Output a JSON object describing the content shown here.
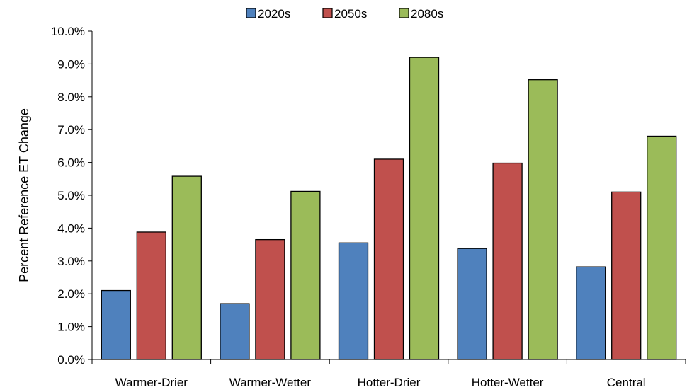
{
  "chart_data": {
    "type": "bar",
    "title": "",
    "xlabel": "",
    "ylabel": "Percent Reference ET Change",
    "categories": [
      "Warmer-Drier",
      "Warmer-Wetter",
      "Hotter-Drier",
      "Hotter-Wetter",
      "Central"
    ],
    "series": [
      {
        "name": "2020s",
        "color": "#4f81bd",
        "values": [
          2.1,
          1.7,
          3.55,
          3.38,
          2.82
        ]
      },
      {
        "name": "2050s",
        "color": "#c0504d",
        "values": [
          3.88,
          3.65,
          6.1,
          5.98,
          5.1
        ]
      },
      {
        "name": "2080s",
        "color": "#9bbb59",
        "values": [
          5.58,
          5.12,
          9.2,
          8.52,
          6.8
        ]
      }
    ],
    "ylim": [
      0,
      10
    ],
    "yticks": [
      0,
      1,
      2,
      3,
      4,
      5,
      6,
      7,
      8,
      9,
      10
    ],
    "ytick_labels": [
      "0.0%",
      "1.0%",
      "2.0%",
      "3.0%",
      "4.0%",
      "5.0%",
      "6.0%",
      "7.0%",
      "8.0%",
      "9.0%",
      "10.0%"
    ],
    "grid": false,
    "legend_position": "top-center"
  }
}
